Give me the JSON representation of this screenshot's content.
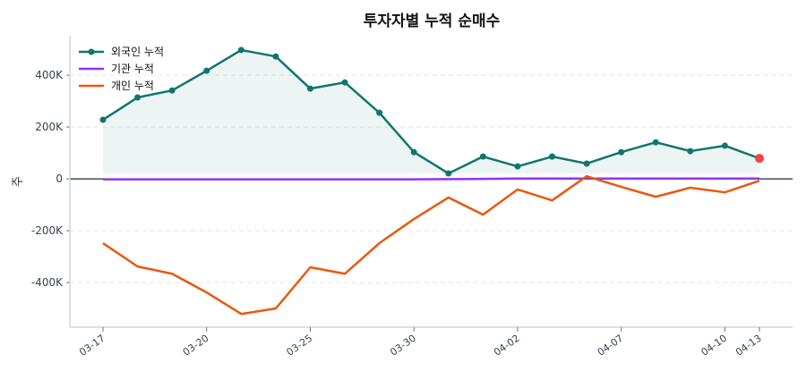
{
  "chart_data": {
    "type": "line",
    "title": "투자자별 누적 순매수",
    "ylabel": "주",
    "xlabel": "",
    "ylim": [
      -572000,
      552000
    ],
    "yticks": [
      {
        "value": 400000,
        "label": "400K"
      },
      {
        "value": 200000,
        "label": "200K"
      },
      {
        "value": 0,
        "label": "0"
      },
      {
        "value": -200000,
        "label": "-200K"
      },
      {
        "value": -400000,
        "label": "-400K"
      }
    ],
    "x_count": 20,
    "x_ticks": [
      {
        "index": 0,
        "label": "03-17"
      },
      {
        "index": 3,
        "label": "03-20"
      },
      {
        "index": 6,
        "label": "03-25"
      },
      {
        "index": 9,
        "label": "03-30"
      },
      {
        "index": 12,
        "label": "04-02"
      },
      {
        "index": 15,
        "label": "04-07"
      },
      {
        "index": 18,
        "label": "04-10"
      },
      {
        "index": 19,
        "label": "04-13"
      }
    ],
    "grid": "horizontal dashed",
    "legend_placement": "top-left",
    "series": [
      {
        "name": "외국인 누적",
        "color": "#0f766e",
        "markers": true,
        "fill": true,
        "last_marker_color": "#ef4444",
        "values": [
          228000,
          314000,
          341000,
          417000,
          497000,
          472000,
          348000,
          372000,
          255000,
          103000,
          21000,
          86000,
          48000,
          86000,
          59000,
          103000,
          141000,
          107000,
          128000,
          79000
        ]
      },
      {
        "name": "기관 누적",
        "color": "#9333ea",
        "markers": false,
        "fill": false,
        "values": [
          -2000,
          -2000,
          -2000,
          -2000,
          -2000,
          -2000,
          -2000,
          -2000,
          -2000,
          -2000,
          -1000,
          0,
          1000,
          1000,
          1000,
          1000,
          1000,
          1000,
          1000,
          1000
        ]
      },
      {
        "name": "개인 누적",
        "color": "#ea580c",
        "markers": false,
        "fill": false,
        "values": [
          -248000,
          -338000,
          -366000,
          -438000,
          -521000,
          -500000,
          -341000,
          -366000,
          -248000,
          -155000,
          -72000,
          -138000,
          -41000,
          -83000,
          10000,
          -31000,
          -69000,
          -34000,
          -52000,
          -7000
        ]
      }
    ]
  }
}
